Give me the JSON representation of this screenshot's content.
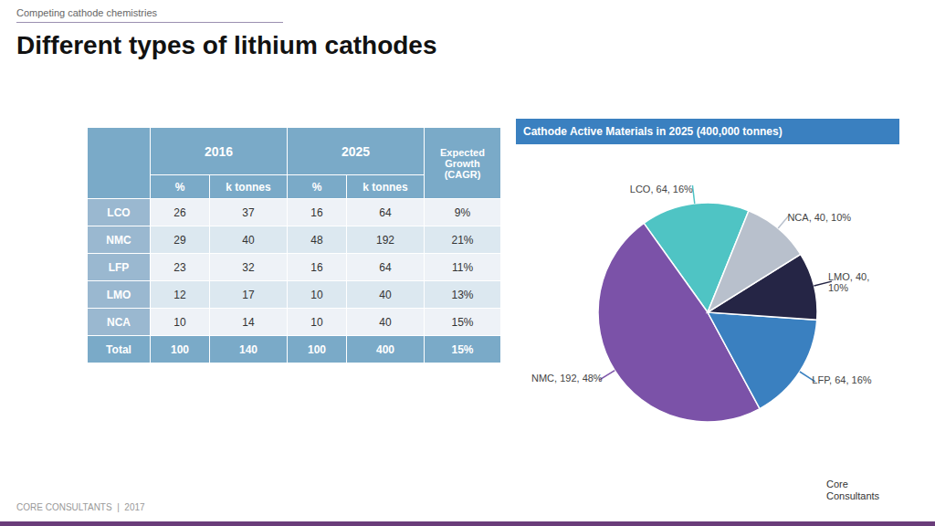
{
  "title": "Different types of lithium cathodes",
  "subtitle": "Competing cathode chemistries",
  "footer": "CORE CONSULTANTS  |  2017",
  "annotation": "Core\nConsultants",
  "chart_data": [
    {
      "type": "table",
      "columns": [
        {
          "group": "2016",
          "label": "%"
        },
        {
          "group": "2016",
          "label": "k tonnes"
        },
        {
          "group": "2025",
          "label": "%"
        },
        {
          "group": "2025",
          "label": "k tonnes"
        },
        {
          "group": "Expected\nGrowth\n(CAGR)",
          "label": null
        }
      ],
      "row_labels": [
        "LCO",
        "NMC",
        "LFP",
        "LMO",
        "NCA",
        "Total"
      ],
      "rows": [
        [
          26,
          37,
          16,
          64,
          "9%"
        ],
        [
          29,
          40,
          48,
          192,
          "21%"
        ],
        [
          23,
          32,
          16,
          64,
          "11%"
        ],
        [
          12,
          17,
          10,
          40,
          "13%"
        ],
        [
          10,
          14,
          10,
          40,
          "15%"
        ],
        [
          100,
          140,
          100,
          400,
          "15%"
        ]
      ]
    },
    {
      "type": "pie",
      "title": "Cathode Active Materials in 2025 (400,000 tonnes)",
      "categories": [
        "LCO",
        "NMC",
        "LFP",
        "LMO",
        "NCA"
      ],
      "values": [
        64,
        192,
        64,
        40,
        40
      ],
      "value_labels": [
        "LCO, 64, 16%",
        "NMC, 192, 48%",
        "LFP, 64, 16%",
        "LMO, 40,\n10%",
        "NCA, 40, 10%"
      ],
      "colors": [
        "#4fc4c4",
        "#7b52a8",
        "#3a80c0",
        "#252545",
        "#b8c0cc"
      ]
    }
  ]
}
